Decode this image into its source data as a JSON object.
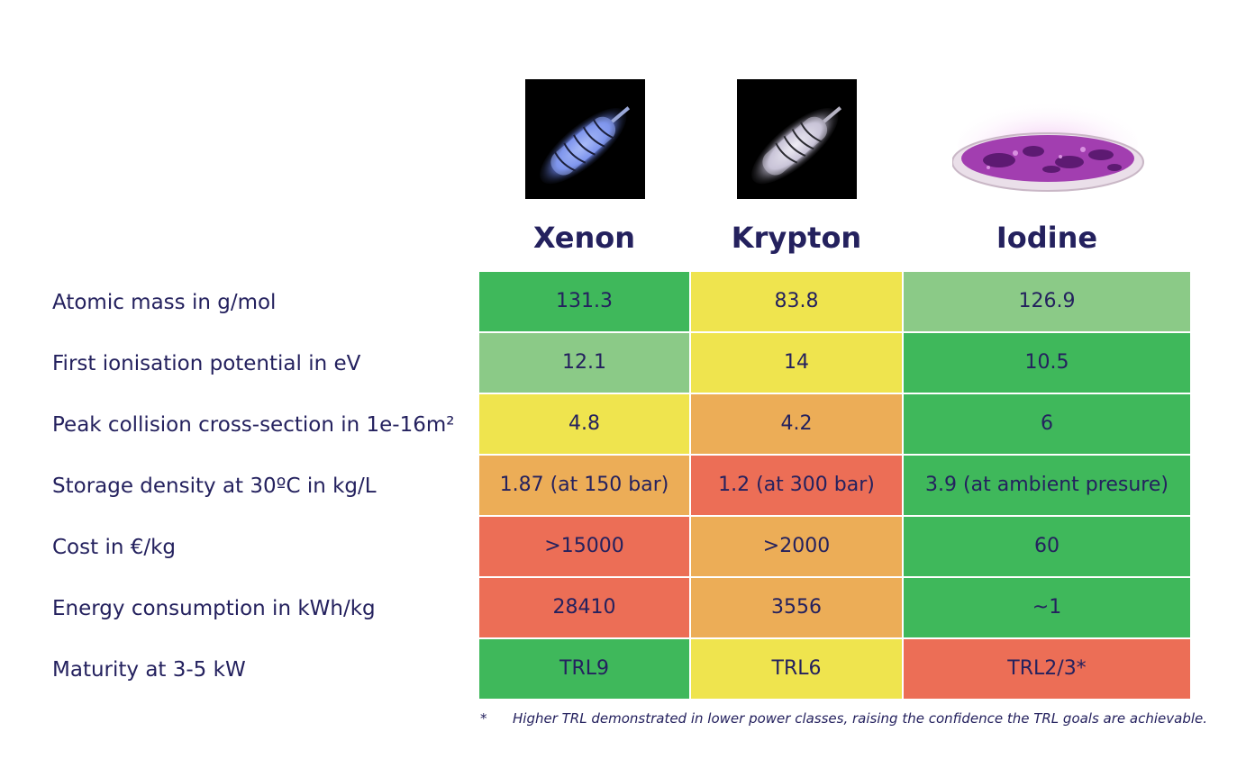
{
  "chart_data": {
    "type": "table",
    "columns": [
      "Xenon",
      "Krypton",
      "Iodine"
    ],
    "rows": [
      {
        "label": "Atomic mass in g/mol",
        "values": [
          "131.3",
          "83.8",
          "126.9"
        ],
        "colors": [
          "#3fb85b",
          "#efe44e",
          "#8bca87"
        ]
      },
      {
        "label": "First ionisation potential in eV",
        "values": [
          "12.1",
          "14",
          "10.5"
        ],
        "colors": [
          "#8bca87",
          "#efe44e",
          "#3fb85b"
        ]
      },
      {
        "label": "Peak collision cross-section in 1e-16m²",
        "values": [
          "4.8",
          "4.2",
          "6"
        ],
        "colors": [
          "#efe44e",
          "#ecad57",
          "#3fb85b"
        ]
      },
      {
        "label": "Storage density at 30ºC in kg/L",
        "values": [
          "1.87 (at 150 bar)",
          "1.2 (at 300 bar)",
          "3.9 (at ambient presure)"
        ],
        "colors": [
          "#ecad57",
          "#ec6e56",
          "#3fb85b"
        ]
      },
      {
        "label": "Cost in €/kg",
        "values": [
          ">15000",
          ">2000",
          "60"
        ],
        "colors": [
          "#ec6e56",
          "#ecad57",
          "#3fb85b"
        ]
      },
      {
        "label": "Energy consumption in kWh/kg",
        "values": [
          "28410",
          "3556",
          "~1"
        ],
        "colors": [
          "#ec6e56",
          "#ecad57",
          "#3fb85b"
        ]
      },
      {
        "label": "Maturity at 3-5 kW",
        "values": [
          "TRL9",
          "TRL6",
          "TRL2/3*"
        ],
        "colors": [
          "#3fb85b",
          "#efe44e",
          "#ec6e56"
        ]
      }
    ],
    "footnote": {
      "mark": "*",
      "text": "Higher TRL demonstrated in lower power classes, raising the confidence the TRL goals are achievable."
    }
  },
  "images": [
    "xenon-tube-photo",
    "krypton-tube-photo",
    "iodine-dish-photo"
  ],
  "colors": {
    "text": "#24215e",
    "green": "#3fb85b",
    "light_green": "#8bca87",
    "yellow": "#efe44e",
    "orange": "#ecad57",
    "red": "#ec6e56"
  }
}
